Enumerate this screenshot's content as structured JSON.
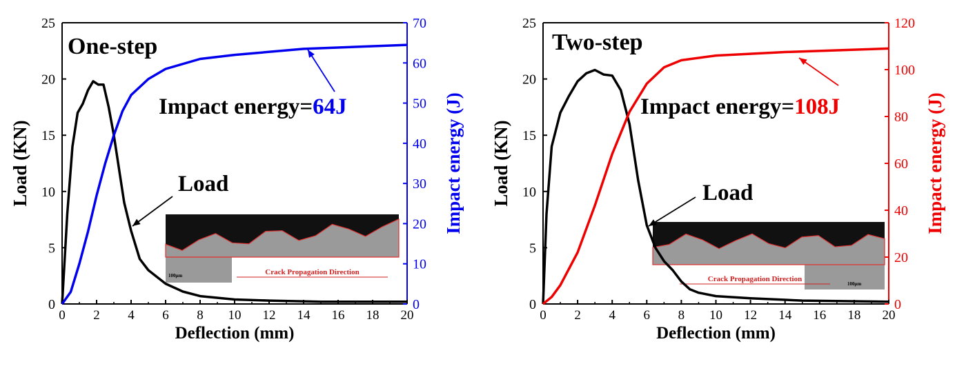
{
  "chart_data": [
    {
      "type": "line",
      "title": "One-step",
      "xlabel": "Deflection (mm)",
      "ylabel": "Load (KN)",
      "y2label": "Impact energy (J)",
      "xlim": [
        0,
        20
      ],
      "ylim": [
        0,
        25
      ],
      "y2lim": [
        0,
        70
      ],
      "xticks": [
        0,
        2,
        4,
        6,
        8,
        10,
        12,
        14,
        16,
        18,
        20
      ],
      "yticks": [
        0,
        5,
        10,
        15,
        20,
        25
      ],
      "y2ticks": [
        0,
        10,
        20,
        30,
        40,
        50,
        60,
        70
      ],
      "accent": "#0000ee",
      "series": [
        {
          "name": "Load",
          "axis": "left",
          "color": "#000000",
          "x": [
            0,
            0.3,
            0.6,
            0.9,
            1.2,
            1.5,
            1.8,
            2.1,
            2.4,
            2.7,
            3,
            3.3,
            3.6,
            4,
            4.5,
            5,
            6,
            7,
            8,
            10,
            12,
            15,
            20
          ],
          "y": [
            0,
            8,
            14,
            17,
            17.8,
            19,
            19.8,
            19.5,
            19.5,
            17.5,
            15,
            12,
            9,
            6.5,
            4,
            3,
            1.8,
            1.1,
            0.7,
            0.4,
            0.3,
            0.2,
            0.2
          ]
        },
        {
          "name": "Impact energy",
          "axis": "right",
          "color": "#0000ee",
          "x": [
            0,
            0.5,
            1,
            1.5,
            2,
            2.5,
            3,
            3.5,
            4,
            5,
            6,
            8,
            10,
            14,
            20
          ],
          "y": [
            0,
            3,
            10,
            18,
            27,
            35,
            42,
            48,
            52,
            56,
            58.5,
            61,
            62,
            63.5,
            64.5
          ]
        }
      ],
      "annotations": {
        "energy_label": "Impact energy=",
        "energy_value": "64J",
        "load_label": "Load"
      },
      "inset": {
        "caption": "Crack Propagation Direction",
        "scale": "100μm"
      }
    },
    {
      "type": "line",
      "title": "Two-step",
      "xlabel": "Deflection (mm)",
      "ylabel": "Load (KN)",
      "y2label": "Impact energy (J)",
      "xlim": [
        0,
        20
      ],
      "ylim": [
        0,
        25
      ],
      "y2lim": [
        0,
        120
      ],
      "xticks": [
        0,
        2,
        4,
        6,
        8,
        10,
        12,
        14,
        16,
        18,
        20
      ],
      "yticks": [
        0,
        5,
        10,
        15,
        20,
        25
      ],
      "y2ticks": [
        0,
        20,
        40,
        60,
        80,
        100,
        120
      ],
      "accent": "#ee0000",
      "series": [
        {
          "name": "Load",
          "axis": "left",
          "color": "#000000",
          "x": [
            0,
            0.2,
            0.5,
            1,
            1.5,
            2,
            2.5,
            3,
            3.5,
            4,
            4.5,
            5,
            5.5,
            6,
            6.5,
            7,
            7.5,
            8,
            8.5,
            9,
            10,
            12,
            15,
            20
          ],
          "y": [
            0,
            8,
            14,
            17,
            18.5,
            19.8,
            20.5,
            20.8,
            20.4,
            20.3,
            19,
            16,
            11,
            7,
            5,
            3.8,
            3,
            2,
            1.3,
            1,
            0.7,
            0.5,
            0.3,
            0.2
          ]
        },
        {
          "name": "Impact energy",
          "axis": "right",
          "color": "#ee0000",
          "x": [
            0,
            0.5,
            1,
            2,
            3,
            4,
            5,
            6,
            7,
            8,
            10,
            14,
            20
          ],
          "y": [
            0,
            3,
            8,
            22,
            42,
            64,
            82,
            94,
            101,
            104,
            106,
            107.5,
            109
          ]
        }
      ],
      "annotations": {
        "energy_label": "Impact energy=",
        "energy_value": "108J",
        "load_label": "Load"
      },
      "inset": {
        "caption": "Crack Propagation Direction",
        "scale": "100μm"
      }
    }
  ]
}
